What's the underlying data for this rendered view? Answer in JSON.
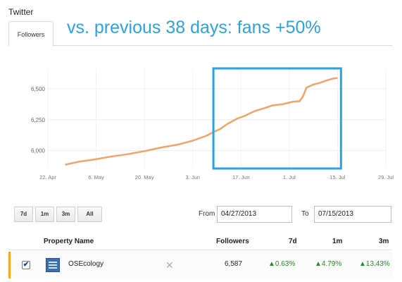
{
  "section": {
    "title": "Twitter"
  },
  "tabs": [
    {
      "label": "Followers"
    }
  ],
  "annotation": {
    "text": "vs. previous 38 days: fans +50%"
  },
  "colors": {
    "line": "#f0a468",
    "highlight_box": "#2aa3e0",
    "up": "#2a8a2a",
    "row_accent": "#f5a623"
  },
  "chart_data": {
    "type": "line",
    "x_ticks": [
      "22. Apr",
      "6. May",
      "20. May",
      "3. Jun",
      "17. Jun",
      "1. Jul",
      "15. Jul",
      "29. Jul"
    ],
    "y_ticks": [
      "6,000",
      "6,250",
      "6,500"
    ],
    "ylim": [
      5860,
      6660
    ],
    "xlim": [
      "2013-04-22",
      "2013-07-29"
    ],
    "grid": true,
    "series": [
      {
        "x": [
          "2013-04-27",
          "2013-05-01",
          "2013-05-05",
          "2013-05-10",
          "2013-05-15",
          "2013-05-20",
          "2013-05-25",
          "2013-05-30",
          "2013-06-03",
          "2013-06-07",
          "2013-06-09",
          "2013-06-11",
          "2013-06-13",
          "2013-06-16",
          "2013-06-18",
          "2013-06-21",
          "2013-06-24",
          "2013-06-26",
          "2013-06-29",
          "2013-07-02",
          "2013-07-04",
          "2013-07-05",
          "2013-07-06",
          "2013-07-08",
          "2013-07-10",
          "2013-07-12",
          "2013-07-14",
          "2013-07-15"
        ],
        "values": [
          5885,
          5910,
          5925,
          5950,
          5970,
          5995,
          6025,
          6050,
          6080,
          6120,
          6150,
          6175,
          6215,
          6260,
          6280,
          6320,
          6345,
          6365,
          6375,
          6395,
          6400,
          6440,
          6510,
          6535,
          6550,
          6570,
          6585,
          6587
        ]
      }
    ],
    "highlight": {
      "from": "2013-06-09",
      "to": "2013-07-16"
    }
  },
  "range_buttons": [
    "7d",
    "1m",
    "3m",
    "All"
  ],
  "dates": {
    "from_label": "From",
    "from_value": "04/27/2013",
    "to_label": "To",
    "to_value": "07/15/2013"
  },
  "table": {
    "headers": {
      "name": "Property Name",
      "followers": "Followers",
      "d7": "7d",
      "m1": "1m",
      "m3": "3m"
    },
    "rows": [
      {
        "checked": "✔",
        "thumb_icon": "site-thumbnail-icon",
        "name": "OSEcology",
        "remove": "✕",
        "followers": "6,587",
        "d7": "▲0.63%",
        "m1": "▲4.79%",
        "m3": "▲13.43%"
      }
    ]
  }
}
